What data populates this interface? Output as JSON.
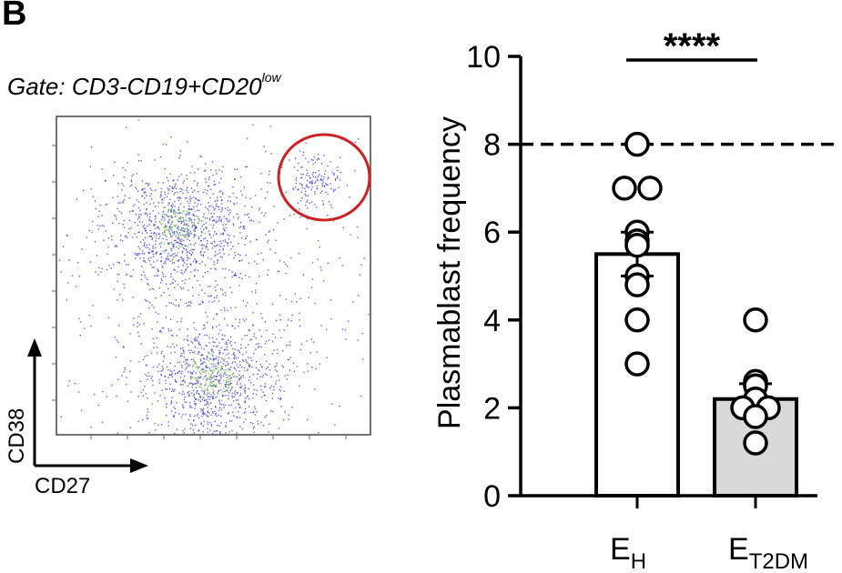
{
  "panel_label": "B",
  "flow": {
    "gate_label": "Gate: CD3-CD19+CD20",
    "gate_label_sup": "low",
    "x_axis_label": "CD27",
    "y_axis_label": "CD38",
    "colors": {
      "dots": "#2b2bd6",
      "dense": "#7ec850",
      "gate": "#cc2222"
    }
  },
  "chart_data": {
    "type": "bar",
    "categories": [
      "E_H",
      "E_T2DM"
    ],
    "category_labels": [
      {
        "main": "E",
        "sub": "H"
      },
      {
        "main": "E",
        "sub": "T2DM"
      }
    ],
    "values": [
      5.5,
      2.2
    ],
    "errors": [
      0.5,
      0.35
    ],
    "points": [
      [
        8.0,
        7.0,
        7.0,
        6.0,
        5.8,
        5.7,
        5.0,
        4.8,
        4.0,
        3.0
      ],
      [
        4.0,
        2.6,
        2.5,
        2.2,
        2.0,
        2.0,
        1.8,
        1.2
      ]
    ],
    "bar_colors": [
      "#ffffff",
      "#d9d9d9"
    ],
    "ylabel": "Plasmablast frequency",
    "xlabel": "",
    "ylim": [
      0,
      10
    ],
    "yticks": [
      0,
      2,
      4,
      6,
      8,
      10
    ],
    "reference_line": 8,
    "significance": "****"
  }
}
